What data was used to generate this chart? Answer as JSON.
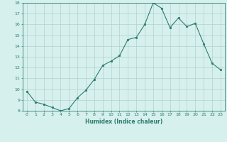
{
  "x": [
    0,
    1,
    2,
    3,
    4,
    5,
    6,
    7,
    8,
    9,
    10,
    11,
    12,
    13,
    14,
    15,
    16,
    17,
    18,
    19,
    20,
    21,
    22,
    23
  ],
  "y": [
    9.8,
    8.8,
    8.6,
    8.3,
    8.0,
    8.2,
    9.2,
    9.9,
    10.9,
    12.2,
    12.6,
    13.1,
    14.6,
    14.8,
    16.0,
    18.0,
    17.5,
    15.7,
    16.6,
    15.8,
    16.1,
    14.2,
    12.4,
    11.8
  ],
  "xlabel": "Humidex (Indice chaleur)",
  "ylim": [
    8,
    18
  ],
  "xlim": [
    -0.5,
    23.5
  ],
  "yticks": [
    8,
    9,
    10,
    11,
    12,
    13,
    14,
    15,
    16,
    17,
    18
  ],
  "xticks": [
    0,
    1,
    2,
    3,
    4,
    5,
    6,
    7,
    8,
    9,
    10,
    11,
    12,
    13,
    14,
    15,
    16,
    17,
    18,
    19,
    20,
    21,
    22,
    23
  ],
  "line_color": "#2e7d6e",
  "marker_color": "#2e7d6e",
  "bg_color": "#d6f0ee",
  "grid_color": "#a8ccc8",
  "tick_color": "#2e7d6e",
  "xlabel_color": "#2e7d6e",
  "tick_fontsize": 4.5,
  "xlabel_fontsize": 5.5,
  "linewidth": 0.8,
  "markersize": 1.8
}
